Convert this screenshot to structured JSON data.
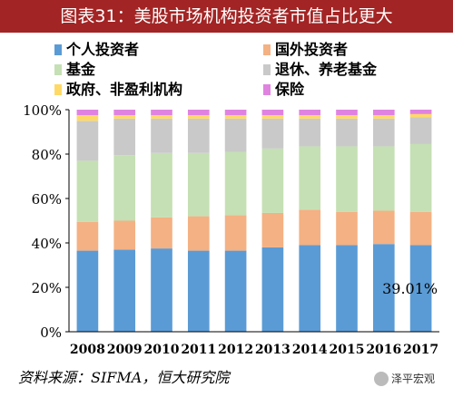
{
  "header": {
    "title": "图表31：美股市场机构投资者市值占比更大"
  },
  "footer": {
    "source": "资料来源：SIFMA，恒大研究院"
  },
  "watermark": {
    "text": "泽平宏观",
    "icon": "wechat-icon"
  },
  "chart_data": {
    "type": "bar",
    "stacked": true,
    "categories": [
      "2008",
      "2009",
      "2010",
      "2011",
      "2012",
      "2013",
      "2014",
      "2015",
      "2016",
      "2017"
    ],
    "series": [
      {
        "name": "个人投资者",
        "color": "#5b9bd5",
        "values": [
          36.5,
          37.0,
          37.5,
          36.5,
          36.5,
          38.0,
          39.0,
          39.0,
          39.5,
          39.01
        ]
      },
      {
        "name": "国外投资者",
        "color": "#f4b183",
        "values": [
          13.0,
          13.0,
          14.0,
          15.5,
          16.0,
          15.5,
          16.0,
          15.0,
          15.0,
          15.0
        ]
      },
      {
        "name": "基金",
        "color": "#c5e0b4",
        "values": [
          27.5,
          29.5,
          29.0,
          28.5,
          28.5,
          29.0,
          28.5,
          29.5,
          29.0,
          30.5
        ]
      },
      {
        "name": "退休、养老基金",
        "color": "#c9c9c9",
        "values": [
          18.0,
          16.5,
          15.5,
          15.5,
          15.0,
          13.5,
          12.5,
          12.5,
          12.5,
          12.0
        ]
      },
      {
        "name": "政府、非盈利机构",
        "color": "#ffd966",
        "values": [
          2.5,
          1.5,
          1.5,
          1.5,
          1.5,
          1.5,
          1.5,
          1.5,
          1.5,
          1.5
        ]
      },
      {
        "name": "保险",
        "color": "#e083e0",
        "values": [
          2.5,
          2.5,
          2.5,
          2.5,
          2.5,
          2.5,
          2.5,
          2.5,
          2.5,
          2.0
        ]
      }
    ],
    "ylim": [
      0,
      100
    ],
    "yticks": [
      "0%",
      "20%",
      "40%",
      "60%",
      "80%",
      "100%"
    ],
    "annotations": [
      {
        "text": "39.01%",
        "category": "2017",
        "series": "个人投资者"
      }
    ],
    "legend": "top",
    "grid": false
  }
}
